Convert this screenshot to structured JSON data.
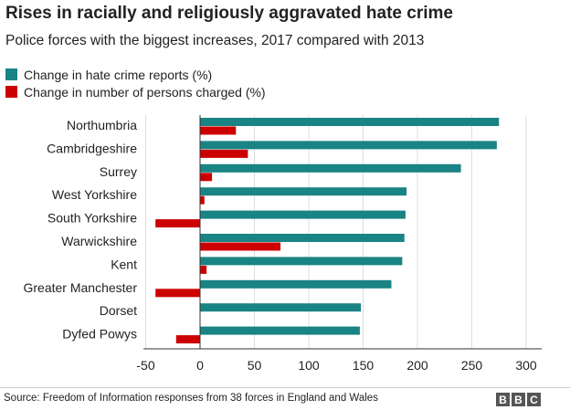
{
  "title": "Rises in racially and religiously aggravated hate crime",
  "subtitle": "Police forces with the biggest increases, 2017 compared with 2013",
  "source": "Source: Freedom of Information responses from 38 forces in England and Wales",
  "logo": [
    "B",
    "B",
    "C"
  ],
  "colors": {
    "reports": "#1a8383",
    "charged": "#cc0000",
    "grid": "#dddddd",
    "axis": "#333333",
    "text": "#222222"
  },
  "chart_data": {
    "type": "bar",
    "orientation": "horizontal",
    "categories": [
      "Northumbria",
      "Cambridgeshire",
      "Surrey",
      "West Yorkshire",
      "South Yorkshire",
      "Warwickshire",
      "Kent",
      "Greater Manchester",
      "Dorset",
      "Dyfed Powys"
    ],
    "series": [
      {
        "name": "Change in hate crime reports (%)",
        "color": "#1a8383",
        "values": [
          275,
          273,
          240,
          190,
          189,
          188,
          186,
          176,
          148,
          147
        ]
      },
      {
        "name": "Change in number of persons charged (%)",
        "color": "#cc0000",
        "values": [
          33,
          44,
          11,
          4,
          -41,
          74,
          6,
          -41,
          null,
          -22
        ]
      }
    ],
    "xlim": [
      -50,
      310
    ],
    "xticks": [
      -50,
      0,
      50,
      100,
      150,
      200,
      250,
      300
    ],
    "xlabel": "",
    "ylabel": "",
    "grid": true,
    "legend_position": "top-left"
  }
}
